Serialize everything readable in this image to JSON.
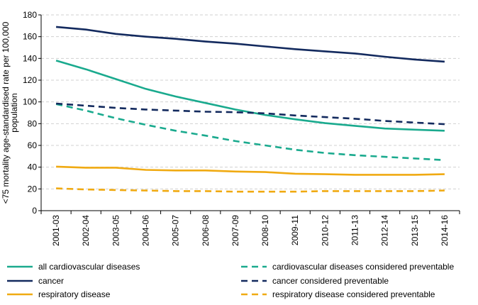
{
  "chart_data": {
    "type": "line",
    "ylabel_lines": [
      "<75 mortality age-standardised  rate per 100,000",
      "population"
    ],
    "ylim": [
      0,
      180
    ],
    "yticks": [
      0,
      20,
      40,
      60,
      80,
      100,
      120,
      140,
      160,
      180
    ],
    "grid": true,
    "legend_position": "bottom",
    "categories": [
      "2001-03",
      "2002-04",
      "2003-05",
      "2004-06",
      "2005-07",
      "2006-08",
      "2007-09",
      "2008-10",
      "2009-11",
      "2010-12",
      "2011-13",
      "2012-14",
      "2013-15",
      "2014-16"
    ],
    "series": [
      {
        "name": "all cardiovascular diseases",
        "color": "#1aaa8e",
        "dash": false,
        "values": [
          138,
          130,
          121,
          112,
          105,
          99,
          93,
          88,
          84,
          80.5,
          78,
          75.5,
          74.5,
          73.5
        ]
      },
      {
        "name": "cardiovascular diseases considered preventable",
        "color": "#1aaa8e",
        "dash": true,
        "values": [
          98,
          92,
          85,
          79,
          73.5,
          69,
          64,
          60,
          56,
          53,
          51,
          49.5,
          48,
          46.5
        ]
      },
      {
        "name": "cancer",
        "color": "#132a5e",
        "dash": false,
        "values": [
          169,
          166.5,
          162.5,
          160,
          158,
          155.5,
          153.5,
          151,
          148.5,
          146.5,
          144.5,
          141.5,
          139,
          137
        ]
      },
      {
        "name": "cancer considered preventable",
        "color": "#132a5e",
        "dash": true,
        "values": [
          98.5,
          96.5,
          94.5,
          93,
          92,
          91,
          90.5,
          89.5,
          87.5,
          86,
          84.5,
          82.5,
          81,
          79.5
        ]
      },
      {
        "name": "respiratory disease",
        "color": "#f0aa12",
        "dash": false,
        "values": [
          40.5,
          39.5,
          39.5,
          37.5,
          37,
          37,
          36,
          35.5,
          34,
          33.5,
          33,
          33,
          33,
          33.5
        ]
      },
      {
        "name": "respiratory disease considered preventable",
        "color": "#f0aa12",
        "dash": true,
        "values": [
          20.5,
          19.5,
          19,
          18.5,
          18,
          18,
          17.5,
          17.5,
          17.5,
          18,
          18,
          18,
          18,
          18.5
        ]
      }
    ],
    "legend_layout": [
      [
        "all cardiovascular diseases",
        "cardiovascular diseases considered preventable"
      ],
      [
        "cancer",
        "cancer considered preventable"
      ],
      [
        "respiratory disease",
        "respiratory disease considered preventable"
      ]
    ]
  }
}
